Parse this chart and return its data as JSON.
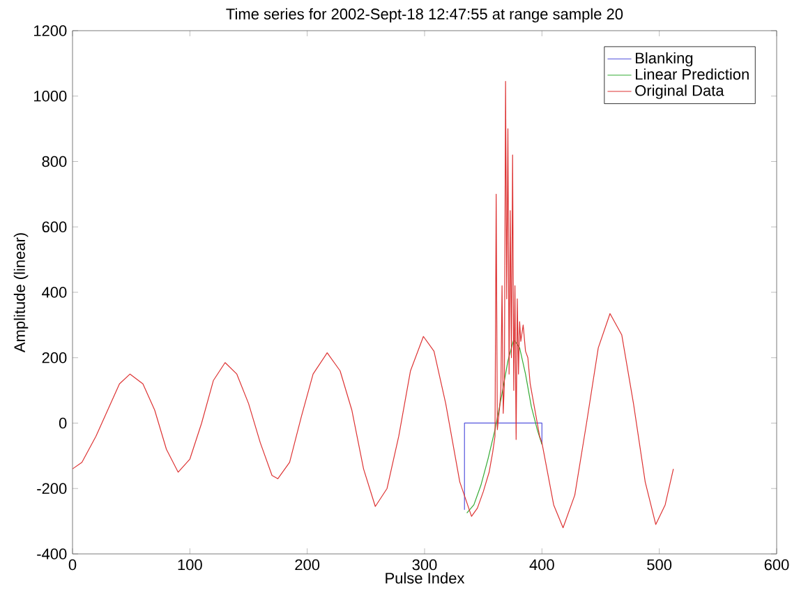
{
  "chart_data": {
    "type": "line",
    "title": "Time series for 2002-Sept-18 12:47:55 at range sample 20",
    "xlabel": "Pulse Index",
    "ylabel": "Amplitude (linear)",
    "xlim": [
      0,
      600
    ],
    "xticks": [
      0,
      100,
      200,
      300,
      400,
      500,
      600
    ],
    "ylim": [
      -400,
      1200
    ],
    "yticks": [
      -400,
      -200,
      0,
      200,
      400,
      600,
      800,
      1000,
      1200
    ],
    "legend": "top right",
    "marker": "none",
    "line_style": "solid",
    "series": [
      {
        "name": "Blanking",
        "color": "#5555dd",
        "x": [
          334,
          334,
          400,
          400
        ],
        "values": [
          -265,
          0,
          0,
          -65
        ]
      },
      {
        "name": "Linear Prediction",
        "color": "#33aa33",
        "x": [
          336,
          342,
          348,
          354,
          360,
          366,
          371,
          376,
          381,
          386,
          391,
          396,
          400
        ],
        "values": [
          -275,
          -250,
          -190,
          -110,
          -20,
          90,
          190,
          256,
          230,
          150,
          50,
          -20,
          -65
        ]
      },
      {
        "name": "Original Data",
        "color": "#dd3333",
        "x": [
          0,
          8,
          20,
          30,
          40,
          49,
          60,
          70,
          80,
          90,
          100,
          110,
          120,
          130,
          140,
          150,
          160,
          170,
          175,
          185,
          195,
          205,
          217,
          228,
          238,
          248,
          258,
          268,
          278,
          288,
          299,
          308,
          318,
          330,
          340,
          345,
          350,
          355,
          358,
          360,
          361,
          362,
          364,
          365,
          366,
          367,
          368,
          369,
          370,
          371,
          372,
          373,
          374,
          375,
          376,
          377,
          378,
          379,
          380,
          381,
          382,
          384,
          386,
          388,
          390,
          393,
          396,
          398,
          400,
          410,
          418,
          428,
          438,
          448,
          458,
          468,
          478,
          488,
          497,
          505,
          512
        ],
        "values": [
          -140,
          -120,
          -40,
          40,
          120,
          150,
          120,
          40,
          -80,
          -150,
          -110,
          0,
          130,
          185,
          150,
          60,
          -60,
          -160,
          -170,
          -120,
          20,
          150,
          215,
          160,
          40,
          -140,
          -255,
          -200,
          -40,
          160,
          265,
          220,
          60,
          -180,
          -285,
          -260,
          -210,
          -150,
          -90,
          -40,
          700,
          -20,
          50,
          100,
          420,
          30,
          120,
          1045,
          380,
          900,
          150,
          650,
          200,
          820,
          100,
          420,
          -50,
          380,
          150,
          310,
          250,
          300,
          220,
          200,
          120,
          60,
          0,
          -40,
          -60,
          -250,
          -320,
          -220,
          0,
          230,
          335,
          270,
          60,
          -180,
          -310,
          -250,
          -140
        ]
      }
    ]
  }
}
